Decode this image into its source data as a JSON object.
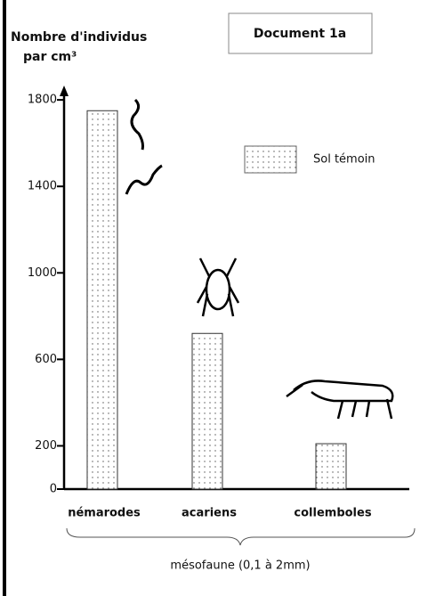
{
  "chart_data": {
    "type": "bar",
    "y_label": [
      "Nombre d'individus",
      "par cm³"
    ],
    "document_label": "Document 1a",
    "categories": [
      "némarodes",
      "acariens",
      "collemboles"
    ],
    "series": [
      {
        "name": "Sol témoin",
        "color": "#555555",
        "values": [
          1750,
          720,
          210
        ]
      }
    ],
    "x_label": "mésofaune (0,1 à 2mm)",
    "ylim": [
      0,
      1850
    ],
    "yticks": [
      0,
      200,
      600,
      1000,
      1400,
      1800
    ],
    "legend": "upper right",
    "grid": false
  }
}
